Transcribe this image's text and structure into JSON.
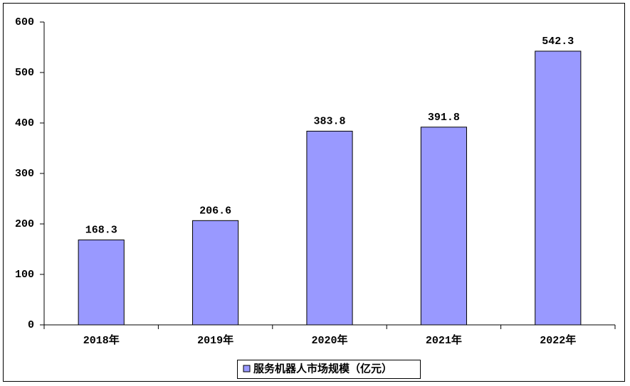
{
  "chart_data": {
    "type": "bar",
    "categories": [
      "2018年",
      "2019年",
      "2020年",
      "2021年",
      "2022年"
    ],
    "series": [
      {
        "name": "服务机器人市场规模（亿元）",
        "color": "#9999ff",
        "values": [
          168.3,
          206.6,
          383.8,
          391.8,
          542.3
        ]
      }
    ],
    "ylim": [
      0,
      600
    ],
    "yticks": [
      0,
      100,
      200,
      300,
      400,
      500,
      600
    ],
    "grid": false,
    "legend": "bottom"
  }
}
